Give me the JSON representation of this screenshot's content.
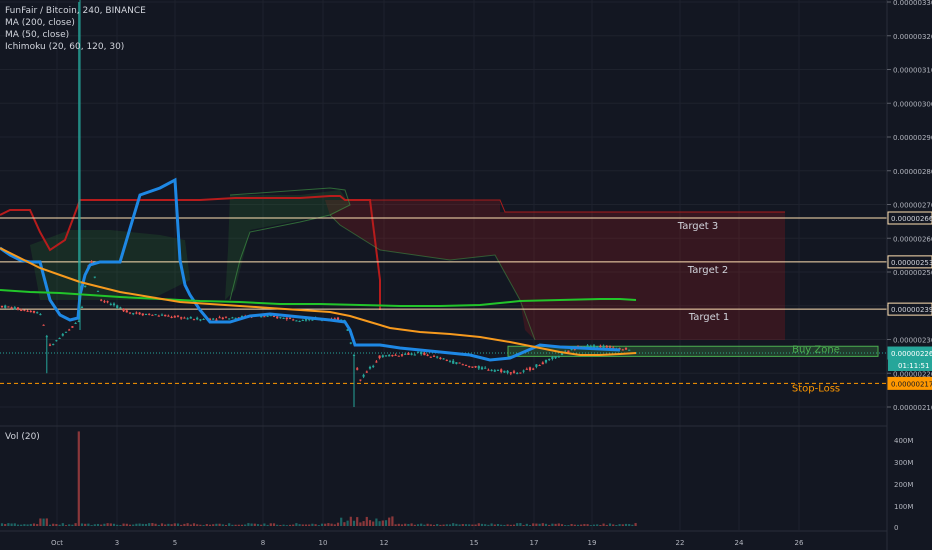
{
  "header": {
    "symbol": "FunFair / Bitcoin, 240, BINANCE",
    "indicators": [
      "MA (200, close)",
      "MA (50, close)",
      "Ichimoku (20, 60, 120, 30)"
    ]
  },
  "volume_pane": {
    "label": "Vol (20)"
  },
  "colors": {
    "background": "#131722",
    "grid": "#1e222d",
    "axis_text": "#b2b5be",
    "bull": "#26a69a",
    "bear": "#ef5350",
    "ma200": "#22c52a",
    "ma50": "#f79a1e",
    "kijun": "#1e88e5",
    "senkou_b": "#b71c1c",
    "cloud_bear": "rgba(183,28,28,0.22)",
    "cloud_bull": "rgba(46,125,50,0.22)",
    "target_line": "#ffe0b2",
    "buy_zone": "#4caf50",
    "stop_loss": "#ff9800"
  },
  "chart_data": {
    "type": "candlestick",
    "price_axis_ticks": [
      "0.00000330",
      "0.00000320",
      "0.00000310",
      "0.00000300",
      "0.00000290",
      "0.00000280",
      "0.00000270",
      "0.00000260",
      "0.00000250",
      "0.00000240",
      "0.00000230",
      "0.00000220",
      "0.00000210"
    ],
    "volume_axis_ticks": [
      "400M",
      "300M",
      "200M",
      "100M",
      "0"
    ],
    "time_axis_ticks": [
      "Oct",
      "3",
      "5",
      "8",
      "10",
      "12",
      "15",
      "17",
      "19",
      "22",
      "24",
      "26"
    ],
    "ylim": [
      2.04e-06,
      3.31e-06
    ],
    "price_labels": {
      "target3": "0.00000266",
      "target2": "0.00000253",
      "target1": "0.00000239",
      "current": "0.00000226",
      "countdown": "01:11:51",
      "stop_loss": "0.00000217"
    },
    "annotations": {
      "target3": "Target 3",
      "target2": "Target 2",
      "target1": "Target 1",
      "buy_zone": "Buy Zone",
      "stop_loss": "Stop-Loss"
    },
    "levels": {
      "target3": 2.66e-06,
      "target2": 2.53e-06,
      "target1": 2.39e-06,
      "current": 2.26e-06,
      "stop_loss": 2.17e-06,
      "buy_zone_low": 2.25e-06,
      "buy_zone_high": 2.28e-06
    }
  }
}
